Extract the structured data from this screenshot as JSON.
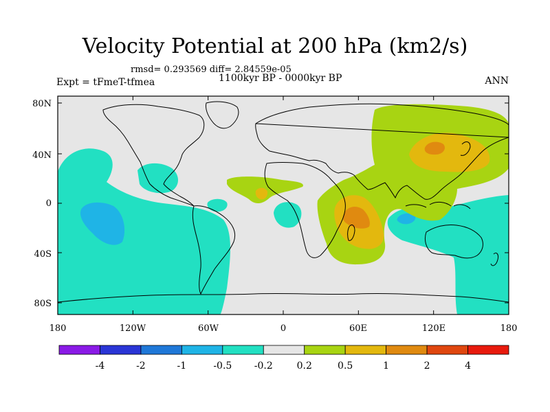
{
  "title": "Velocity Potential at 200 hPa (km2/s)",
  "stats_line": "rmsd= 0.293569 diff= 2.84559e-05",
  "period_line": "1100kyr BP - 0000kyr BP",
  "experiment": "Expt = tFmeT-tfmea",
  "season": "ANN",
  "map": {
    "lat_ticks": [
      "80N",
      "40N",
      "0",
      "40S",
      "80S"
    ],
    "lon_ticks": [
      "180",
      "120W",
      "60W",
      "0",
      "60E",
      "120E",
      "180"
    ]
  },
  "colorbar": {
    "labels": [
      "-4",
      "-2",
      "-1",
      "-0.5",
      "-0.2",
      "0.2",
      "0.5",
      "1",
      "2",
      "4"
    ],
    "colors": [
      "#8a1ae6",
      "#2a35d6",
      "#1f78d8",
      "#1fb4e6",
      "#22e0c2",
      "#e6e6e6",
      "#a8d412",
      "#e3b80e",
      "#e08a10",
      "#e0470f",
      "#e81a0d"
    ]
  },
  "colors": {
    "neutral": "#e6e6e6",
    "c_neg1": "#1fb4e6",
    "c_neg05": "#22e0c2",
    "c_pos02": "#a8d412",
    "c_pos05": "#e3b80e",
    "c_pos1": "#e08a10"
  }
}
